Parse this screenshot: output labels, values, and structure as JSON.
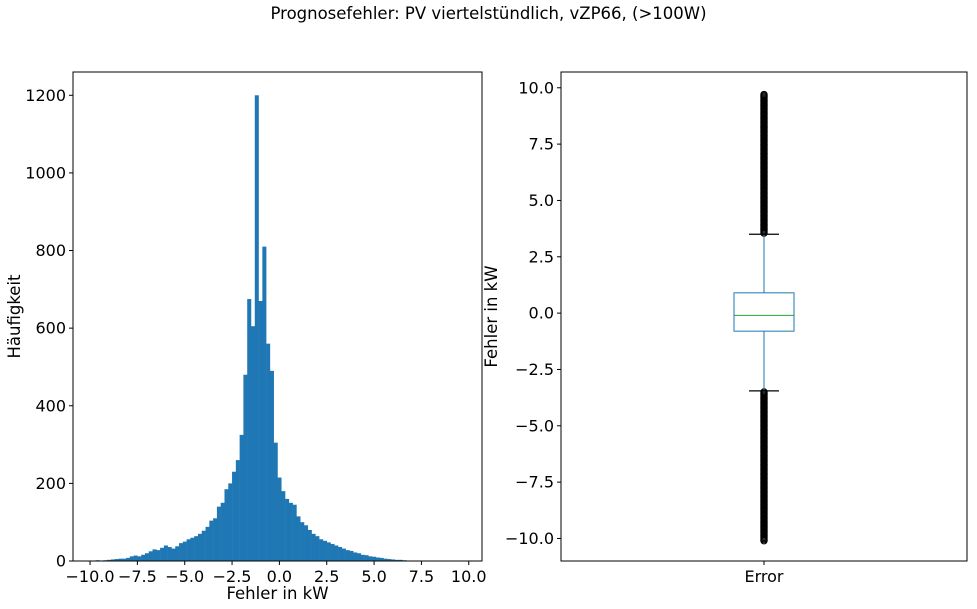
{
  "suptitle": "Prognosefehler: PV viertelstündlich, vZP66, (>100W)",
  "colors": {
    "hist_bar": "#1f77b4",
    "box": "#1f77b4",
    "median": "#2ca02c",
    "flier": "#000000"
  },
  "chart_data": [
    {
      "type": "bar",
      "subtype": "histogram",
      "xlabel": "Fehler in kW",
      "ylabel": "Häufigkeit",
      "xlim": [
        -10.9,
        10.7
      ],
      "ylim": [
        0,
        1260
      ],
      "xticks": [
        -10.0,
        -7.5,
        -5.0,
        -2.5,
        0.0,
        2.5,
        5.0,
        7.5,
        10.0
      ],
      "xtick_labels": [
        "−10.0",
        "−7.5",
        "−5.0",
        "−2.5",
        "0.0",
        "2.5",
        "5.0",
        "7.5",
        "10.0"
      ],
      "yticks": [
        0,
        200,
        400,
        600,
        800,
        1000,
        1200
      ],
      "ytick_labels": [
        "0",
        "200",
        "400",
        "600",
        "800",
        "1000",
        "1200"
      ],
      "bin_start": -10.1,
      "bin_width": 0.2,
      "values": [
        1,
        1,
        2,
        1,
        2,
        3,
        4,
        5,
        6,
        6,
        8,
        12,
        14,
        12,
        16,
        20,
        25,
        30,
        28,
        34,
        40,
        36,
        32,
        38,
        46,
        50,
        56,
        60,
        64,
        70,
        78,
        88,
        104,
        110,
        140,
        150,
        185,
        200,
        230,
        260,
        325,
        480,
        675,
        605,
        1200,
        670,
        810,
        560,
        490,
        305,
        215,
        180,
        160,
        150,
        145,
        115,
        100,
        92,
        80,
        70,
        64,
        56,
        52,
        48,
        44,
        40,
        36,
        32,
        28,
        26,
        22,
        20,
        16,
        15,
        12,
        11,
        9,
        8,
        6,
        5,
        4,
        3,
        3,
        2,
        1,
        1,
        1,
        1
      ]
    },
    {
      "type": "box",
      "category": "Error",
      "ylabel": "Fehler in kW",
      "ylim": [
        -11.0,
        10.7
      ],
      "yticks": [
        -10.0,
        -7.5,
        -5.0,
        -2.5,
        0.0,
        2.5,
        5.0,
        7.5,
        10.0
      ],
      "ytick_labels": [
        "−10.0",
        "−7.5",
        "−5.0",
        "−2.5",
        "0.0",
        "2.5",
        "5.0",
        "7.5",
        "10.0"
      ],
      "q1": -0.8,
      "median": -0.1,
      "q3": 0.9,
      "whisker_low": -3.45,
      "whisker_high": 3.5,
      "fliers_low_range": [
        -10.1,
        -3.5
      ],
      "fliers_high_range": [
        3.55,
        9.7
      ]
    }
  ]
}
